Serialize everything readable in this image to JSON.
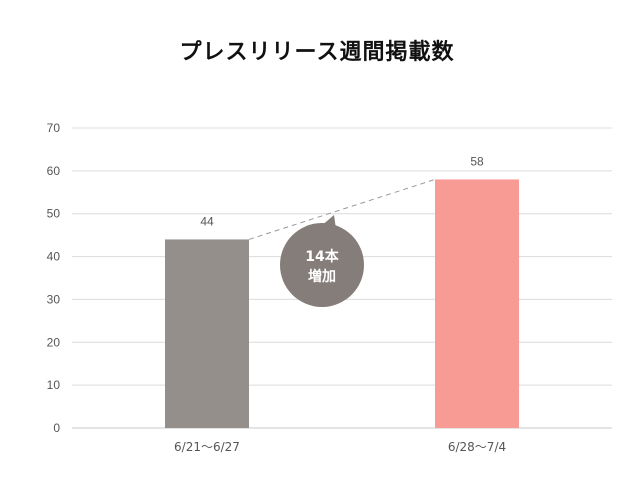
{
  "chart_data": {
    "type": "bar",
    "title": "プレスリリース週間掲載数",
    "categories": [
      "6/21～6/27",
      "6/28～7/4"
    ],
    "values": [
      44,
      58
    ],
    "ylim": [
      0,
      70
    ],
    "yticks": [
      0,
      10,
      20,
      30,
      40,
      50,
      60,
      70
    ],
    "grid": true,
    "legend": "none",
    "bar_colors": [
      "#958f8b",
      "#f99b95"
    ],
    "annotation": {
      "line1": "14本",
      "line2": "増加",
      "color": "#847d79"
    }
  }
}
